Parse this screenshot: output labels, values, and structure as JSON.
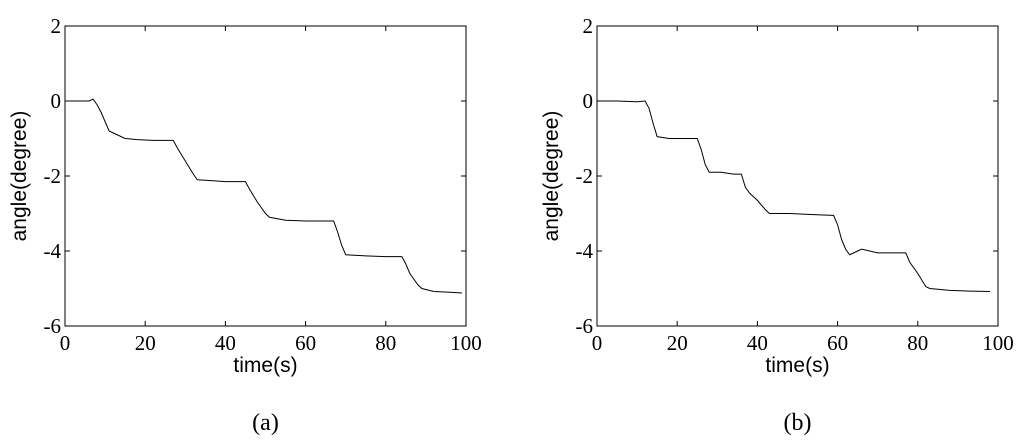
{
  "chart_data": [
    {
      "type": "line",
      "xlabel": "time(s)",
      "ylabel": "angle(degree)",
      "caption": "(a)",
      "x": [
        0,
        3,
        6,
        7,
        8,
        9,
        10,
        11,
        13,
        15,
        18,
        22,
        27,
        28,
        30,
        32,
        33,
        36,
        40,
        45,
        46,
        48,
        50,
        51,
        55,
        60,
        67,
        68,
        69,
        70,
        75,
        80,
        84,
        85,
        86,
        88,
        89,
        92,
        96,
        99
      ],
      "values": [
        0,
        0,
        0,
        0.05,
        -0.1,
        -0.3,
        -0.55,
        -0.8,
        -0.9,
        -1.0,
        -1.03,
        -1.05,
        -1.05,
        -1.25,
        -1.6,
        -1.95,
        -2.1,
        -2.12,
        -2.15,
        -2.15,
        -2.35,
        -2.7,
        -3.0,
        -3.1,
        -3.18,
        -3.2,
        -3.2,
        -3.5,
        -3.85,
        -4.1,
        -4.13,
        -4.15,
        -4.15,
        -4.35,
        -4.6,
        -4.9,
        -5.0,
        -5.08,
        -5.1,
        -5.12
      ],
      "color": "#000000",
      "xlim": [
        0,
        100
      ],
      "ylim": [
        -6,
        2
      ],
      "xticks": [
        0,
        20,
        40,
        60,
        80,
        100
      ],
      "yticks": [
        -6,
        -4,
        -2,
        0,
        2
      ]
    },
    {
      "type": "line",
      "xlabel": "time(s)",
      "ylabel": "angle(degree)",
      "caption": "(b)",
      "x": [
        0,
        5,
        10,
        12,
        13,
        14,
        15,
        18,
        22,
        25,
        26,
        27,
        28,
        31,
        34,
        36,
        37,
        38,
        40,
        42,
        43,
        48,
        54,
        59,
        60,
        61,
        62,
        63,
        64,
        66,
        70,
        77,
        78,
        80,
        82,
        83,
        88,
        93,
        98
      ],
      "values": [
        0,
        0,
        -0.02,
        0,
        -0.2,
        -0.6,
        -0.95,
        -1.0,
        -1.0,
        -1.0,
        -1.3,
        -1.7,
        -1.9,
        -1.9,
        -1.95,
        -1.95,
        -2.3,
        -2.45,
        -2.65,
        -2.9,
        -3.0,
        -3.0,
        -3.03,
        -3.05,
        -3.3,
        -3.7,
        -3.95,
        -4.1,
        -4.05,
        -3.95,
        -4.05,
        -4.05,
        -4.3,
        -4.6,
        -4.95,
        -5.0,
        -5.05,
        -5.07,
        -5.08
      ],
      "color": "#000000",
      "xlim": [
        0,
        100
      ],
      "ylim": [
        -6,
        2
      ],
      "xticks": [
        0,
        20,
        40,
        60,
        80,
        100
      ],
      "yticks": [
        -6,
        -4,
        -2,
        0,
        2
      ]
    }
  ]
}
